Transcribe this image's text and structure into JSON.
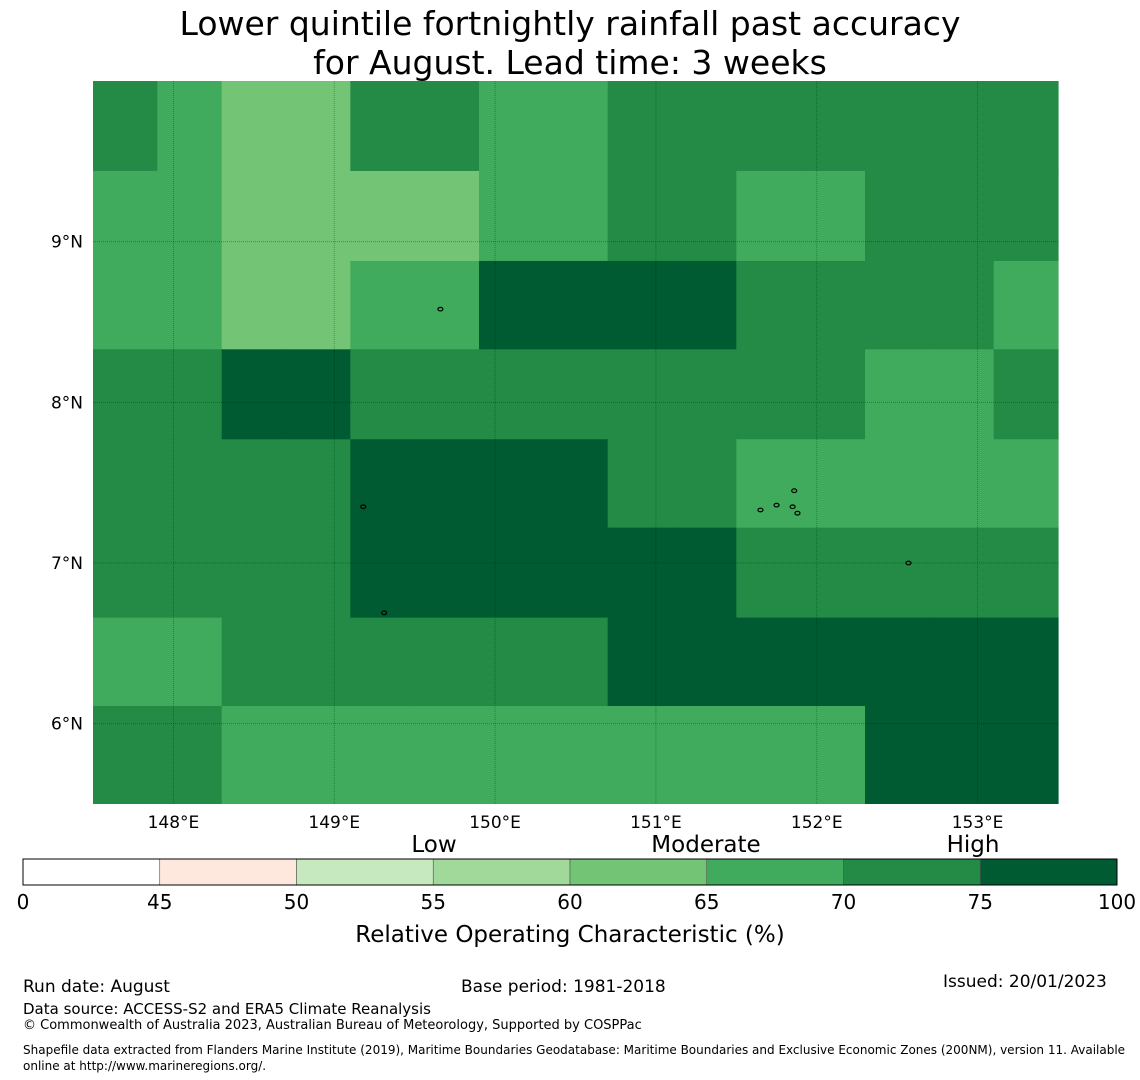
{
  "title": {
    "line1": "Lower quintile fortnightly rainfall past accuracy",
    "line2": "for August. Lead time: 3 weeks"
  },
  "map": {
    "lon_range": [
      147.5,
      153.5
    ],
    "lat_range": [
      5.5,
      10.0
    ],
    "cell_size_deg": 0.833,
    "grid_lines": true,
    "lon_ticks": [
      {
        "value": 148,
        "label": "148°E"
      },
      {
        "value": 149,
        "label": "149°E"
      },
      {
        "value": 150,
        "label": "150°E"
      },
      {
        "value": 151,
        "label": "151°E"
      },
      {
        "value": 152,
        "label": "152°E"
      },
      {
        "value": 153,
        "label": "153°E"
      }
    ],
    "lat_ticks": [
      {
        "value": 9,
        "label": "9°N"
      },
      {
        "value": 8,
        "label": "8°N"
      },
      {
        "value": 7,
        "label": "7°N"
      },
      {
        "value": 6,
        "label": "6°N"
      }
    ],
    "class_colors": {
      "60-65": "#74c476",
      "65-70": "#41ab5d",
      "70-75": "#238b45",
      "75-100": "#005a32"
    },
    "row_latitudes_top": [
      10.0,
      9.44,
      8.88,
      8.33,
      7.77,
      7.22,
      6.66,
      6.11,
      5.55
    ],
    "grid_classes": [
      [
        "70-75",
        "65-70",
        "60-65",
        "60-65",
        "70-75",
        "70-75",
        "65-70",
        "65-70",
        "70-75",
        "70-75",
        "70-75",
        "70-75",
        "70-75",
        "70-75",
        "70-75"
      ],
      [
        "65-70",
        "65-70",
        "60-65",
        "60-65",
        "60-65",
        "60-65",
        "65-70",
        "65-70",
        "70-75",
        "70-75",
        "65-70",
        "65-70",
        "70-75",
        "70-75",
        "70-75"
      ],
      [
        "65-70",
        "65-70",
        "60-65",
        "60-65",
        "65-70",
        "65-70",
        "75-100",
        "75-100",
        "75-100",
        "75-100",
        "70-75",
        "70-75",
        "70-75",
        "70-75",
        "65-70"
      ],
      [
        "70-75",
        "70-75",
        "75-100",
        "75-100",
        "70-75",
        "70-75",
        "70-75",
        "70-75",
        "70-75",
        "70-75",
        "70-75",
        "70-75",
        "65-70",
        "65-70",
        "70-75"
      ],
      [
        "70-75",
        "70-75",
        "70-75",
        "70-75",
        "75-100",
        "75-100",
        "75-100",
        "75-100",
        "70-75",
        "70-75",
        "65-70",
        "65-70",
        "65-70",
        "65-70",
        "65-70"
      ],
      [
        "70-75",
        "70-75",
        "70-75",
        "70-75",
        "75-100",
        "75-100",
        "75-100",
        "75-100",
        "75-100",
        "75-100",
        "70-75",
        "70-75",
        "70-75",
        "70-75",
        "70-75"
      ],
      [
        "65-70",
        "65-70",
        "70-75",
        "70-75",
        "70-75",
        "70-75",
        "70-75",
        "70-75",
        "75-100",
        "75-100",
        "75-100",
        "75-100",
        "75-100",
        "75-100",
        "75-100"
      ],
      [
        "70-75",
        "70-75",
        "65-70",
        "65-70",
        "65-70",
        "65-70",
        "65-70",
        "65-70",
        "65-70",
        "65-70",
        "65-70",
        "65-70",
        "75-100",
        "75-100",
        "75-100"
      ]
    ],
    "islands": [
      {
        "lon": 149.66,
        "lat": 8.58
      },
      {
        "lon": 149.18,
        "lat": 7.35
      },
      {
        "lon": 149.31,
        "lat": 6.69
      },
      {
        "lon": 151.65,
        "lat": 7.33
      },
      {
        "lon": 151.75,
        "lat": 7.36
      },
      {
        "lon": 151.85,
        "lat": 7.35
      },
      {
        "lon": 151.86,
        "lat": 7.45
      },
      {
        "lon": 151.88,
        "lat": 7.31
      },
      {
        "lon": 152.57,
        "lat": 7.0
      }
    ]
  },
  "colorbar": {
    "category_labels": [
      "Low",
      "Moderate",
      "High"
    ],
    "tick_labels": [
      "0",
      "45",
      "50",
      "55",
      "60",
      "65",
      "70",
      "75",
      "100"
    ],
    "segment_colors": [
      "#ffffff",
      "#fee8de",
      "#c7e9c0",
      "#a1d99b",
      "#74c476",
      "#41ab5d",
      "#238b45",
      "#005a32"
    ],
    "label": "Relative Operating Characteristic (%)"
  },
  "footer": {
    "run_date": "Run date: August",
    "base_period": "Base period: 1981-2018",
    "issued": "Issued: 20/01/2023",
    "data_source": "Data source: ACCESS-S2 and ERA5 Climate Reanalysis",
    "copyright": "© Commonwealth of Australia 2023, Australian Bureau of Meteorology, Supported by COSPPac",
    "shapefile_note": "Shapefile data extracted from Flanders Marine Institute (2019), Maritime Boundaries Geodatabase: Maritime Boundaries and Exclusive Economic Zones (200NM), version 11. Available online at http://www.marineregions.org/."
  }
}
